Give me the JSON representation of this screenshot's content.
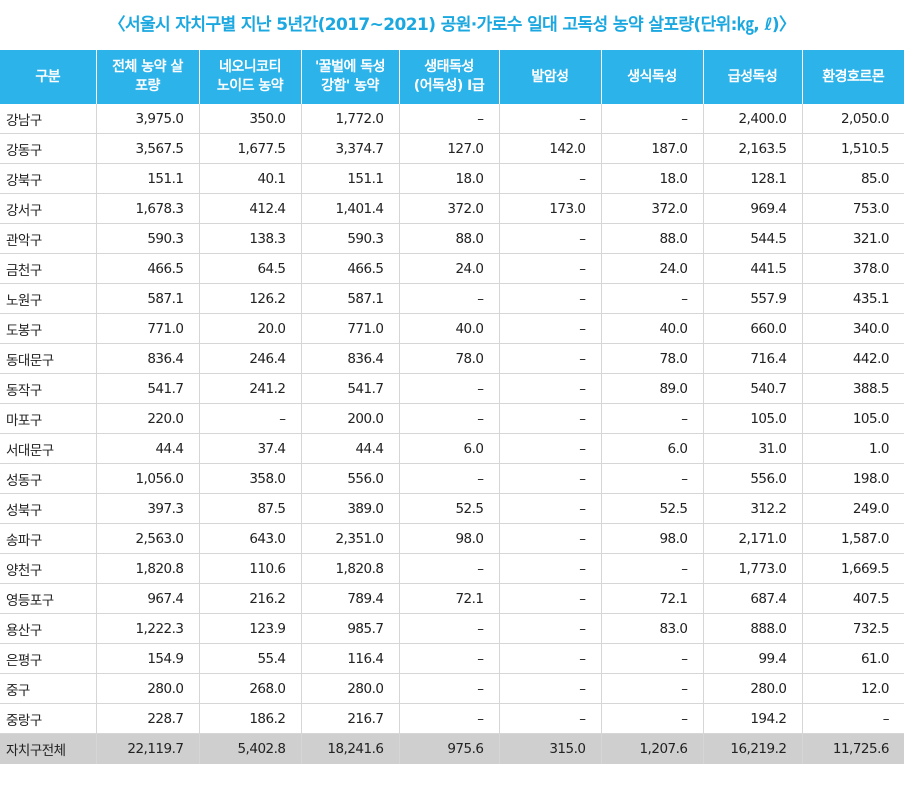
{
  "title": "〈서울시 자치구별 지난 5년간(2017~2021) 공원·가로수 일대 고독성 농약 살포량(단위:㎏, ℓ)〉",
  "columns": [
    "구분",
    "전체 농약 살\n포량",
    "네오니코티\n노이드 농약",
    "'꿀벌에 독성\n강함' 농약",
    "생태독성\n(어독성) I급",
    "발암성",
    "생식독성",
    "급성독성",
    "환경호르몬"
  ],
  "rows": [
    [
      "강남구",
      "3,975.0",
      "350.0",
      "1,772.0",
      "–",
      "–",
      "–",
      "2,400.0",
      "2,050.0"
    ],
    [
      "강동구",
      "3,567.5",
      "1,677.5",
      "3,374.7",
      "127.0",
      "142.0",
      "187.0",
      "2,163.5",
      "1,510.5"
    ],
    [
      "강북구",
      "151.1",
      "40.1",
      "151.1",
      "18.0",
      "–",
      "18.0",
      "128.1",
      "85.0"
    ],
    [
      "강서구",
      "1,678.3",
      "412.4",
      "1,401.4",
      "372.0",
      "173.0",
      "372.0",
      "969.4",
      "753.0"
    ],
    [
      "관악구",
      "590.3",
      "138.3",
      "590.3",
      "88.0",
      "–",
      "88.0",
      "544.5",
      "321.0"
    ],
    [
      "금천구",
      "466.5",
      "64.5",
      "466.5",
      "24.0",
      "–",
      "24.0",
      "441.5",
      "378.0"
    ],
    [
      "노원구",
      "587.1",
      "126.2",
      "587.1",
      "–",
      "–",
      "–",
      "557.9",
      "435.1"
    ],
    [
      "도봉구",
      "771.0",
      "20.0",
      "771.0",
      "40.0",
      "–",
      "40.0",
      "660.0",
      "340.0"
    ],
    [
      "동대문구",
      "836.4",
      "246.4",
      "836.4",
      "78.0",
      "–",
      "78.0",
      "716.4",
      "442.0"
    ],
    [
      "동작구",
      "541.7",
      "241.2",
      "541.7",
      "–",
      "–",
      "89.0",
      "540.7",
      "388.5"
    ],
    [
      "마포구",
      "220.0",
      "–",
      "200.0",
      "–",
      "–",
      "–",
      "105.0",
      "105.0"
    ],
    [
      "서대문구",
      "44.4",
      "37.4",
      "44.4",
      "6.0",
      "–",
      "6.0",
      "31.0",
      "1.0"
    ],
    [
      "성동구",
      "1,056.0",
      "358.0",
      "556.0",
      "–",
      "–",
      "–",
      "556.0",
      "198.0"
    ],
    [
      "성북구",
      "397.3",
      "87.5",
      "389.0",
      "52.5",
      "–",
      "52.5",
      "312.2",
      "249.0"
    ],
    [
      "송파구",
      "2,563.0",
      "643.0",
      "2,351.0",
      "98.0",
      "–",
      "98.0",
      "2,171.0",
      "1,587.0"
    ],
    [
      "양천구",
      "1,820.8",
      "110.6",
      "1,820.8",
      "–",
      "–",
      "–",
      "1,773.0",
      "1,669.5"
    ],
    [
      "영등포구",
      "967.4",
      "216.2",
      "789.4",
      "72.1",
      "–",
      "72.1",
      "687.4",
      "407.5"
    ],
    [
      "용산구",
      "1,222.3",
      "123.9",
      "985.7",
      "–",
      "–",
      "83.0",
      "888.0",
      "732.5"
    ],
    [
      "은평구",
      "154.9",
      "55.4",
      "116.4",
      "–",
      "–",
      "–",
      "99.4",
      "61.0"
    ],
    [
      "중구",
      "280.0",
      "268.0",
      "280.0",
      "–",
      "–",
      "–",
      "280.0",
      "12.0"
    ],
    [
      "중랑구",
      "228.7",
      "186.2",
      "216.7",
      "–",
      "–",
      "–",
      "194.2",
      "–"
    ]
  ],
  "total": [
    "자치구전체",
    "22,119.7",
    "5,402.8",
    "18,241.6",
    "975.6",
    "315.0",
    "1,207.6",
    "16,219.2",
    "11,725.6"
  ],
  "colors": {
    "title": "#1ba8e0",
    "header_bg": "#2bb3ea",
    "total_bg": "#cfcfcf"
  }
}
